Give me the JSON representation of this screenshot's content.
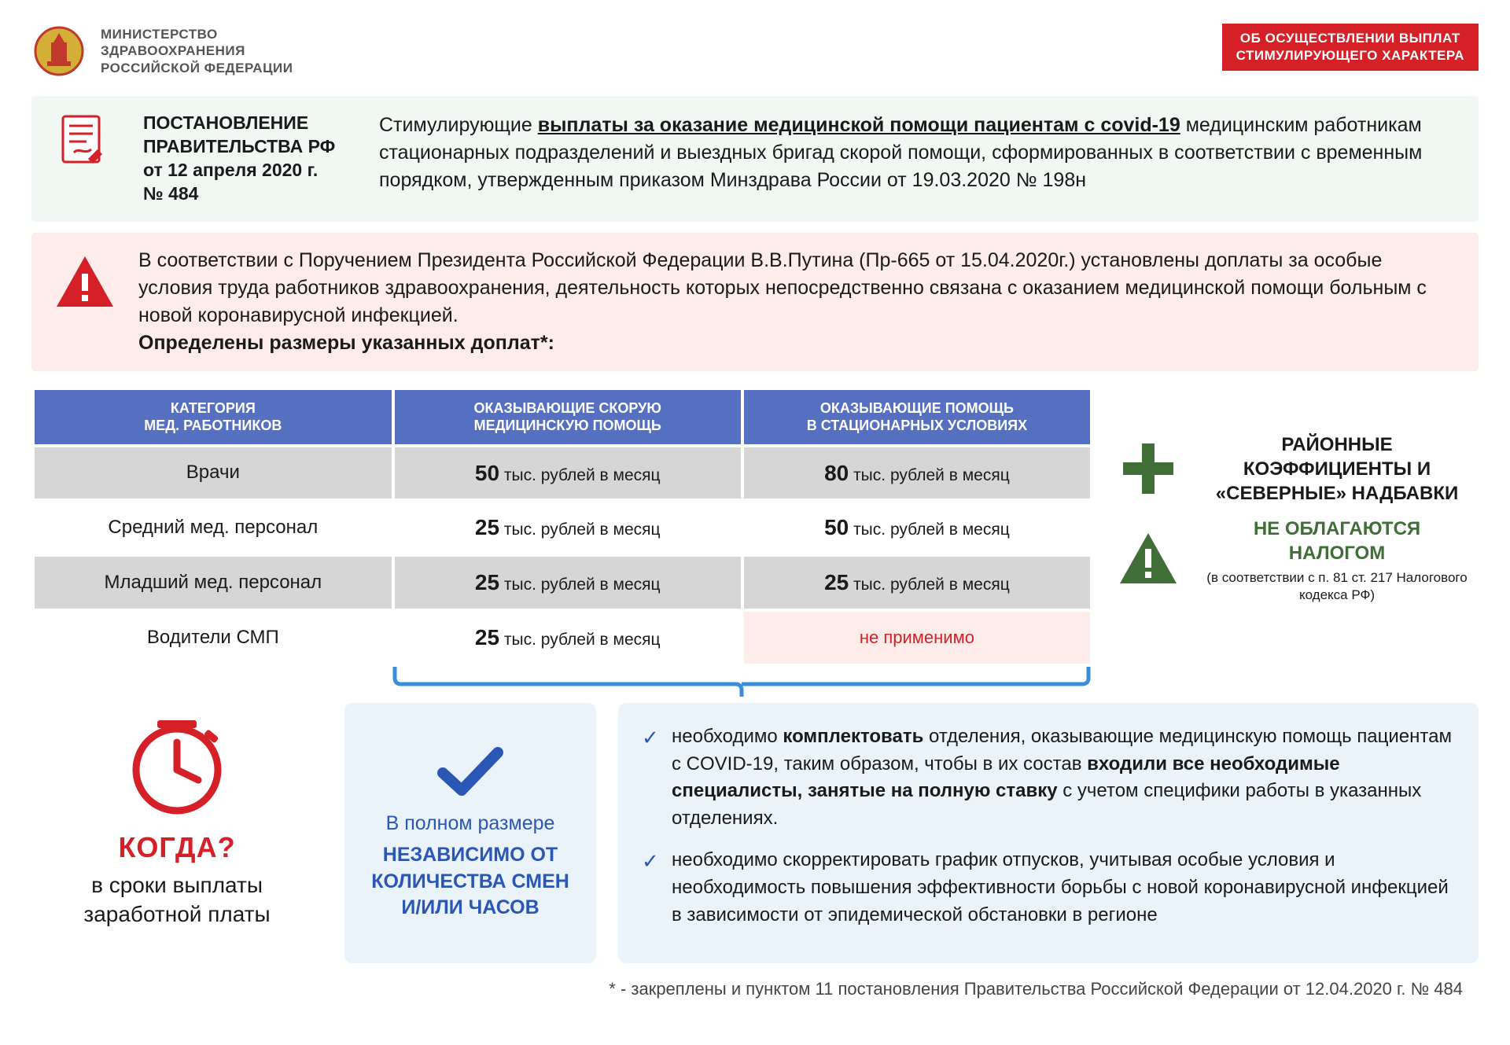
{
  "colors": {
    "header_blue": "#5670c1",
    "accent_red": "#d52028",
    "pale_green_bg": "#f1f7f2",
    "pale_red_bg": "#fdecea",
    "pale_blue_bg": "#eaf2fa",
    "row_shade": "#d6d6d6",
    "dark_green": "#3f6f37",
    "link_blue": "#2a57b5",
    "bracket_blue": "#3a8dd8"
  },
  "header": {
    "ministry_line1": "МИНИСТЕРСТВО",
    "ministry_line2": "ЗДРАВООХРАНЕНИЯ",
    "ministry_line3": "РОССИЙСКОЙ ФЕДЕРАЦИИ",
    "badge_line1": "ОБ ОСУЩЕСТВЛЕНИИ ВЫПЛАТ",
    "badge_line2": "СТИМУЛИРУЮЩЕГО ХАРАКТЕРА"
  },
  "decree": {
    "title_line1": "ПОСТАНОВЛЕНИЕ",
    "title_line2": "ПРАВИТЕЛЬСТВА РФ",
    "title_line3": "от 12 апреля 2020 г.",
    "title_line4": "№ 484",
    "body_lead": "Стимулирующие ",
    "body_underlined": "выплаты за оказание медицинской помощи пациентам с covid-19",
    "body_rest": " медицинским работникам стационарных подразделений и выездных бригад скорой помощи, сформированных в соответствии с временным порядком, утвержденным приказом Минздрава России от 19.03.2020 № 198н"
  },
  "alert": {
    "body": "В соответствии с Поручением Президента Российской Федерации В.В.Путина (Пр-665 от 15.04.2020г.) установлены доплаты за особые условия труда работников здравоохранения, деятельность которых непосредственно связана с оказанием медицинской помощи больным с новой коронавирусной инфекцией.",
    "bold_line": "Определены размеры указанных доплат*:"
  },
  "table": {
    "columns": [
      "КАТЕГОРИЯ\nМЕД. РАБОТНИКОВ",
      "ОКАЗЫВАЮЩИЕ СКОРУЮ\nМЕДИЦИНСКУЮ ПОМОЩЬ",
      "ОКАЗЫВАЮЩИЕ ПОМОЩЬ\nВ СТАЦИОНАРНЫХ УСЛОВИЯХ"
    ],
    "unit_suffix": " тыс. рублей в месяц",
    "na_label": "не применимо",
    "rows": [
      {
        "category": "Врачи",
        "emergency": 50,
        "inpatient": 80
      },
      {
        "category": "Средний мед. персонал",
        "emergency": 25,
        "inpatient": 50
      },
      {
        "category": "Младший мед. персонал",
        "emergency": 25,
        "inpatient": 25
      },
      {
        "category": "Водители СМП",
        "emergency": 25,
        "inpatient": null
      }
    ]
  },
  "side": {
    "coeff_text": "РАЙОННЫЕ КОЭФФИЦИЕНТЫ И «СЕВЕРНЫЕ» НАДБАВКИ",
    "notax_line1": "НЕ ОБЛАГАЮТСЯ",
    "notax_line2": "НАЛОГОМ",
    "notax_sub": "(в соответствии с п. 81 ст. 217 Налогового кодекса РФ)"
  },
  "bottom": {
    "when_title": "КОГДА?",
    "when_sub": "в сроки выплаты заработной платы",
    "full_lead": "В полном размере",
    "full_bold": "НЕЗАВИСИМО ОТ КОЛИЧЕСТВА СМЕН И/ИЛИ ЧАСОВ",
    "bullets": [
      {
        "pre": "необходимо ",
        "b1": "комплектовать",
        "mid": " отделения, оказывающие медицинскую помощь пациентам с COVID-19, таким образом, чтобы в их состав ",
        "b2": "входили все необходимые специалисты, занятые на полную ставку",
        "post": " с учетом специфики работы в указанных отделениях."
      },
      {
        "pre": "необходимо скорректировать график отпусков, учитывая особые условия и необходимость повышения эффективности борьбы с новой коронавирусной инфекцией в зависимости от эпидемической обстановки в регионе",
        "b1": "",
        "mid": "",
        "b2": "",
        "post": ""
      }
    ]
  },
  "footnote": "* - закреплены и пунктом 11 постановления Правительства Российской Федерации от 12.04.2020 г. № 484"
}
